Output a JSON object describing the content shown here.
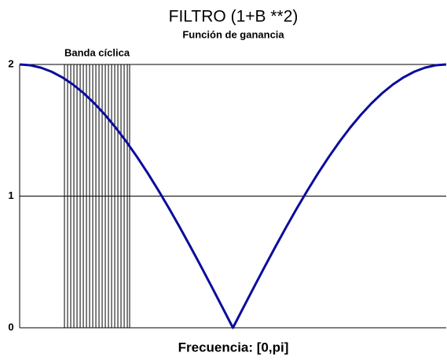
{
  "chart_data": {
    "type": "line",
    "title": "FILTRO (1+B **2)",
    "subtitle": "Función de ganancia",
    "xlabel": "Frecuencia: [0,pi]",
    "band_label": "Banda cíclica",
    "band": [
      0.33,
      0.81
    ],
    "x": [
      0,
      0.0785,
      0.1571,
      0.2356,
      0.3142,
      0.3927,
      0.4712,
      0.5498,
      0.6283,
      0.7069,
      0.7854,
      0.8639,
      0.9425,
      1.021,
      1.0996,
      1.1781,
      1.2566,
      1.3352,
      1.4137,
      1.4923,
      1.5708,
      1.6493,
      1.7279,
      1.8064,
      1.885,
      1.9635,
      2.042,
      2.1206,
      2.1991,
      2.2777,
      2.3562,
      2.4347,
      2.5133,
      2.5918,
      2.6704,
      2.7489,
      2.8274,
      2.906,
      2.9845,
      3.0631,
      3.1416
    ],
    "values": [
      2,
      1.9938,
      1.9754,
      1.9447,
      1.9021,
      1.8478,
      1.782,
      1.7053,
      1.618,
      1.5208,
      1.4142,
      1.2989,
      1.1756,
      1.045,
      0.908,
      0.7654,
      0.618,
      0.4669,
      0.3129,
      0.1569,
      0,
      0.1569,
      0.3129,
      0.4669,
      0.618,
      0.7654,
      0.908,
      1.045,
      1.1756,
      1.2989,
      1.4142,
      1.5208,
      1.618,
      1.7053,
      1.782,
      1.8478,
      1.9021,
      1.9447,
      1.9754,
      1.9938,
      2
    ],
    "color": "#0c0c9c",
    "xlim": [
      0,
      3.1416
    ],
    "ylim": [
      0,
      2
    ],
    "yticks": [
      0,
      1,
      2
    ],
    "grid": true
  }
}
